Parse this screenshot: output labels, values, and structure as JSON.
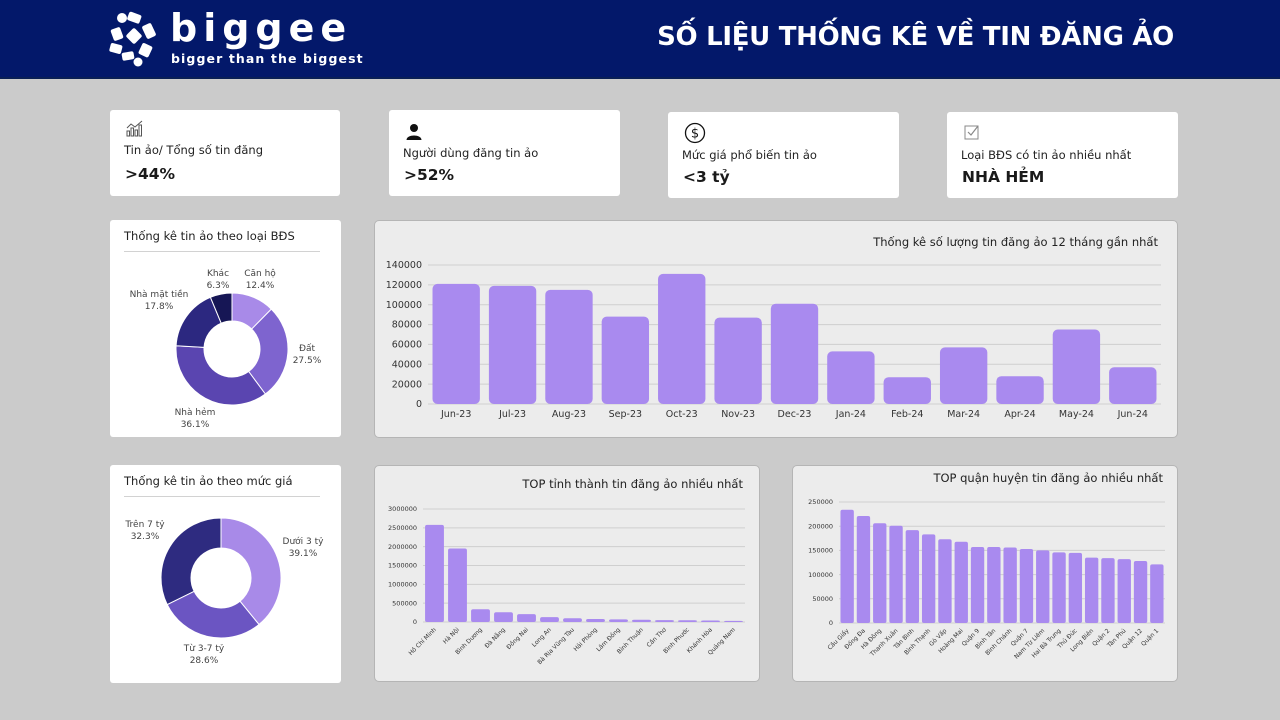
{
  "header": {
    "logo_word": "biggee",
    "logo_tagline": "bigger than the biggest",
    "title": "SỐ LIỆU THỐNG KÊ VỀ TIN ĐĂNG ẢO",
    "bg_color": "#03186a"
  },
  "kpis": [
    {
      "icon": "bar-chart-icon",
      "label": "Tin ảo/ Tổng số tin đăng",
      "value": ">44%"
    },
    {
      "icon": "user-icon",
      "label": "Người dùng đăng tin ảo",
      "value": ">52%"
    },
    {
      "icon": "dollar-circle-icon",
      "label": "Mức giá phổ biến tin ảo",
      "value": "<3 tỷ"
    },
    {
      "icon": "checkbox-icon",
      "label": "Loại BĐS có tin ảo nhiều nhất",
      "value": "NHÀ HẺM"
    }
  ],
  "chart_data": [
    {
      "type": "pie",
      "donut": true,
      "title": "Thống kê tin ảo theo loại BĐS",
      "slices": [
        {
          "label": "Căn hộ",
          "value": 12.4,
          "display": "12.4%",
          "color": "#a88ae8"
        },
        {
          "label": "Đất",
          "value": 27.5,
          "display": "27.5%",
          "color": "#7e64cf"
        },
        {
          "label": "Nhà hẻm",
          "value": 36.1,
          "display": "36.1%",
          "color": "#5a45b0"
        },
        {
          "label": "Nhà mặt tiền",
          "value": 17.8,
          "display": "17.8%",
          "color": "#2c2880"
        },
        {
          "label": "Khác",
          "value": 6.3,
          "display": "6.3%",
          "color": "#161655"
        }
      ]
    },
    {
      "type": "bar",
      "title": "Thống kê số lượng tin đăng ảo 12 tháng gần nhất",
      "categories": [
        "Jun-23",
        "Jul-23",
        "Aug-23",
        "Sep-23",
        "Oct-23",
        "Nov-23",
        "Dec-23",
        "Jan-24",
        "Feb-24",
        "Mar-24",
        "Apr-24",
        "May-24",
        "Jun-24"
      ],
      "values": [
        121000,
        119000,
        115000,
        88000,
        131000,
        87000,
        101000,
        53000,
        27000,
        57000,
        28000,
        75000,
        37000
      ],
      "ylim": [
        0,
        140000
      ],
      "yticks": [
        0,
        20000,
        40000,
        60000,
        80000,
        100000,
        120000,
        140000
      ],
      "grid": true,
      "color": "#a98aef"
    },
    {
      "type": "pie",
      "donut": true,
      "title": "Thống kê tin ảo theo mức giá",
      "slices": [
        {
          "label": "Dưới 3 tỷ",
          "value": 39.1,
          "display": "39.1%",
          "color": "#a88ae8"
        },
        {
          "label": "Từ 3-7 tỷ",
          "value": 28.6,
          "display": "28.6%",
          "color": "#6b55c2"
        },
        {
          "label": "Trên 7 tỷ",
          "value": 32.3,
          "display": "32.3%",
          "color": "#2e2b80"
        }
      ]
    },
    {
      "type": "bar",
      "title": "TOP tỉnh thành tin đăng ảo nhiều nhất",
      "categories": [
        "Hồ Chí Minh",
        "Hà Nội",
        "Bình Dương",
        "Đà Nẵng",
        "Đồng Nai",
        "Long An",
        "Bà Rịa Vũng Tàu",
        "Hải Phòng",
        "Lâm Đồng",
        "Bình Thuận",
        "Cần Thơ",
        "Bình Phước",
        "Khánh Hòa",
        "Quảng Nam"
      ],
      "values": [
        2580000,
        1950000,
        340000,
        260000,
        210000,
        130000,
        100000,
        80000,
        70000,
        60000,
        50000,
        45000,
        40000,
        30000
      ],
      "ylim": [
        0,
        3000000
      ],
      "yticks": [
        0,
        500000,
        1000000,
        1500000,
        2000000,
        2500000,
        3000000
      ],
      "grid": true,
      "color": "#a98aef"
    },
    {
      "type": "bar",
      "title": "TOP quận huyện tin đăng ảo nhiều nhất",
      "categories": [
        "Cầu Giấy",
        "Đống Đa",
        "Hà Đông",
        "Thanh Xuân",
        "Tân Bình",
        "Bình Thạnh",
        "Gò Vấp",
        "Hoàng Mai",
        "Quận 9",
        "Bình Tân",
        "Bình Chánh",
        "Quận 7",
        "Nam Từ Liêm",
        "Hai Bà Trưng",
        "Thủ Đức",
        "Long Biên",
        "Quận 2",
        "Tân Phú",
        "Quận 12",
        "Quận 1"
      ],
      "values": [
        234000,
        221000,
        206000,
        201000,
        192000,
        183000,
        173000,
        168000,
        157000,
        157000,
        156000,
        153000,
        150000,
        146000,
        145000,
        135000,
        134000,
        132000,
        128000,
        121000
      ],
      "ylim": [
        0,
        250000
      ],
      "yticks": [
        0,
        50000,
        100000,
        150000,
        200000,
        250000
      ],
      "grid": true,
      "color": "#a98aef"
    }
  ]
}
